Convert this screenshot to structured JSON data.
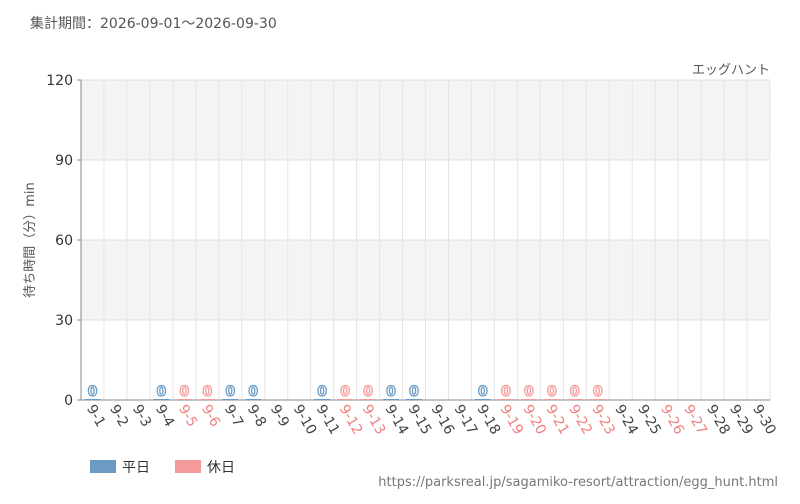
{
  "chart_data": {
    "type": "bar",
    "subtitle": "集計期間：2026-09-01～2026-09-30",
    "title": "エッグハント",
    "y_label": "待ち時間（分）min",
    "source": "https://parksreal.jp/sagamiko-resort/attraction/egg_hunt.html",
    "categories": [
      "9-1",
      "9-2",
      "9-3",
      "9-4",
      "9-5",
      "9-6",
      "9-7",
      "9-8",
      "9-9",
      "9-10",
      "9-11",
      "9-12",
      "9-13",
      "9-14",
      "9-15",
      "9-16",
      "9-17",
      "9-18",
      "9-19",
      "9-20",
      "9-21",
      "9-22",
      "9-23",
      "9-24",
      "9-25",
      "9-26",
      "9-27",
      "9-28",
      "9-29",
      "9-30"
    ],
    "category_colors": [
      "#444",
      "#444",
      "#444",
      "#444",
      "#f08080",
      "#f08080",
      "#444",
      "#444",
      "#444",
      "#444",
      "#444",
      "#f08080",
      "#f08080",
      "#444",
      "#444",
      "#444",
      "#444",
      "#444",
      "#f08080",
      "#f08080",
      "#f08080",
      "#f08080",
      "#f08080",
      "#444",
      "#444",
      "#f08080",
      "#f08080",
      "#444",
      "#444",
      "#444"
    ],
    "series": [
      {
        "name": "平日",
        "color": "#6b9bc3",
        "values": [
          0,
          null,
          null,
          0,
          null,
          null,
          0,
          0,
          null,
          null,
          0,
          null,
          null,
          0,
          0,
          null,
          null,
          0,
          null,
          null,
          null,
          null,
          null,
          null,
          null,
          null,
          null,
          null,
          null,
          null
        ]
      },
      {
        "name": "休日",
        "color": "#f59a9a",
        "values": [
          null,
          null,
          null,
          null,
          0,
          0,
          null,
          null,
          null,
          null,
          null,
          0,
          0,
          null,
          null,
          null,
          null,
          null,
          0,
          0,
          0,
          0,
          0,
          null,
          null,
          null,
          null,
          null,
          null,
          null
        ]
      }
    ],
    "ylim": [
      0,
      120
    ],
    "yticks": [
      0,
      30,
      60,
      90,
      120
    ],
    "grid": true
  }
}
